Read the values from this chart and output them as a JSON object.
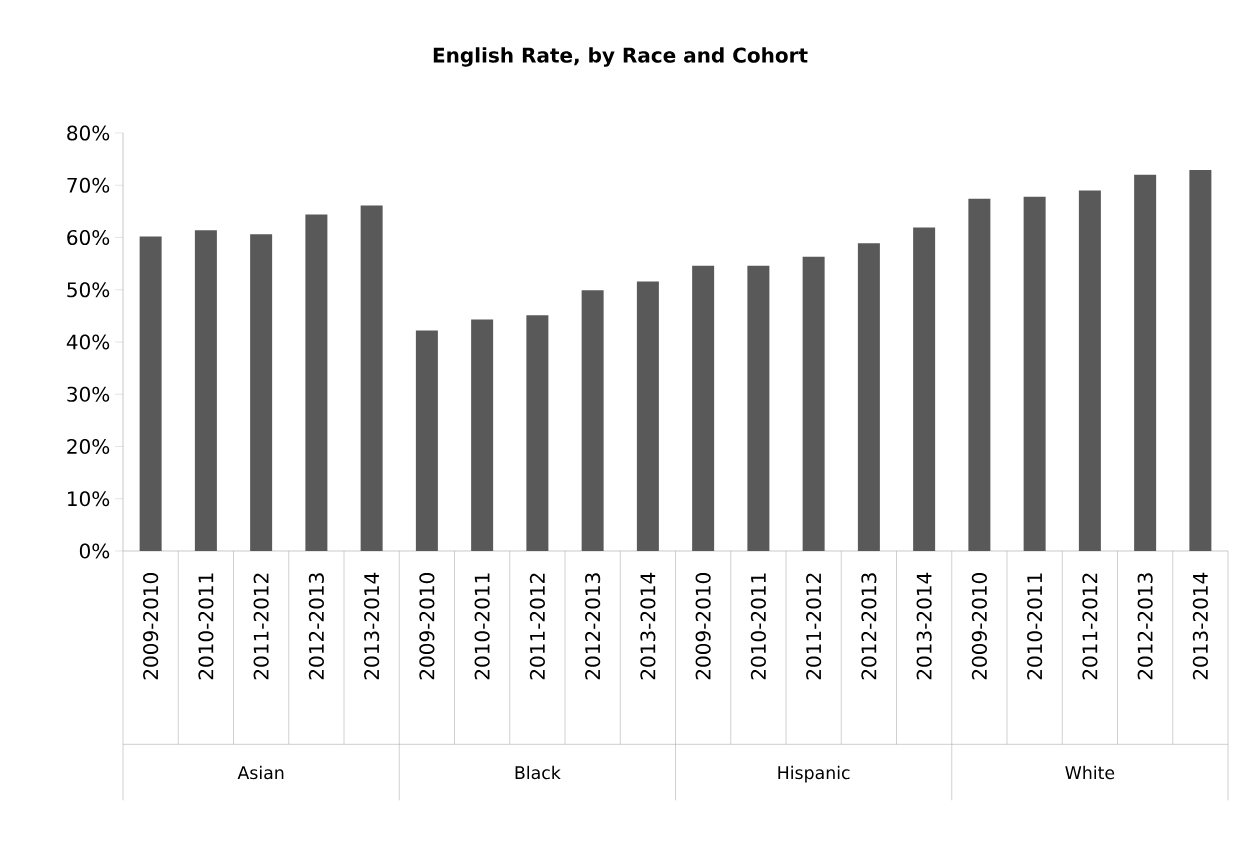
{
  "chart_data": {
    "type": "bar",
    "title": "English Rate, by Race and Cohort",
    "categories": [
      "2009-2010",
      "2010-2011",
      "2011-2012",
      "2012-2013",
      "2013-2014",
      "2009-2010",
      "2010-2011",
      "2011-2012",
      "2012-2013",
      "2013-2014",
      "2009-2010",
      "2010-2011",
      "2011-2012",
      "2012-2013",
      "2013-2014",
      "2009-2010",
      "2010-2011",
      "2011-2012",
      "2012-2013",
      "2013-2014"
    ],
    "values": [
      60.2,
      61.4,
      60.6,
      64.4,
      66.1,
      42.2,
      44.3,
      45.1,
      49.9,
      51.6,
      54.6,
      54.6,
      56.3,
      58.9,
      61.9,
      67.4,
      67.8,
      69.0,
      72.0,
      72.9
    ],
    "color": "#595959",
    "ylim": [
      0,
      80
    ],
    "yticks": [
      {
        "value": 0,
        "label": "0%"
      },
      {
        "value": 10,
        "label": "10%"
      },
      {
        "value": 20,
        "label": "20%"
      },
      {
        "value": 30,
        "label": "30%"
      },
      {
        "value": 40,
        "label": "40%"
      },
      {
        "value": 50,
        "label": "50%"
      },
      {
        "value": 60,
        "label": "60%"
      },
      {
        "value": 70,
        "label": "70%"
      },
      {
        "value": 80,
        "label": "80%"
      }
    ],
    "annotations": [
      "Asian",
      "Black",
      "Hispanic",
      "White"
    ],
    "grid": false
  }
}
